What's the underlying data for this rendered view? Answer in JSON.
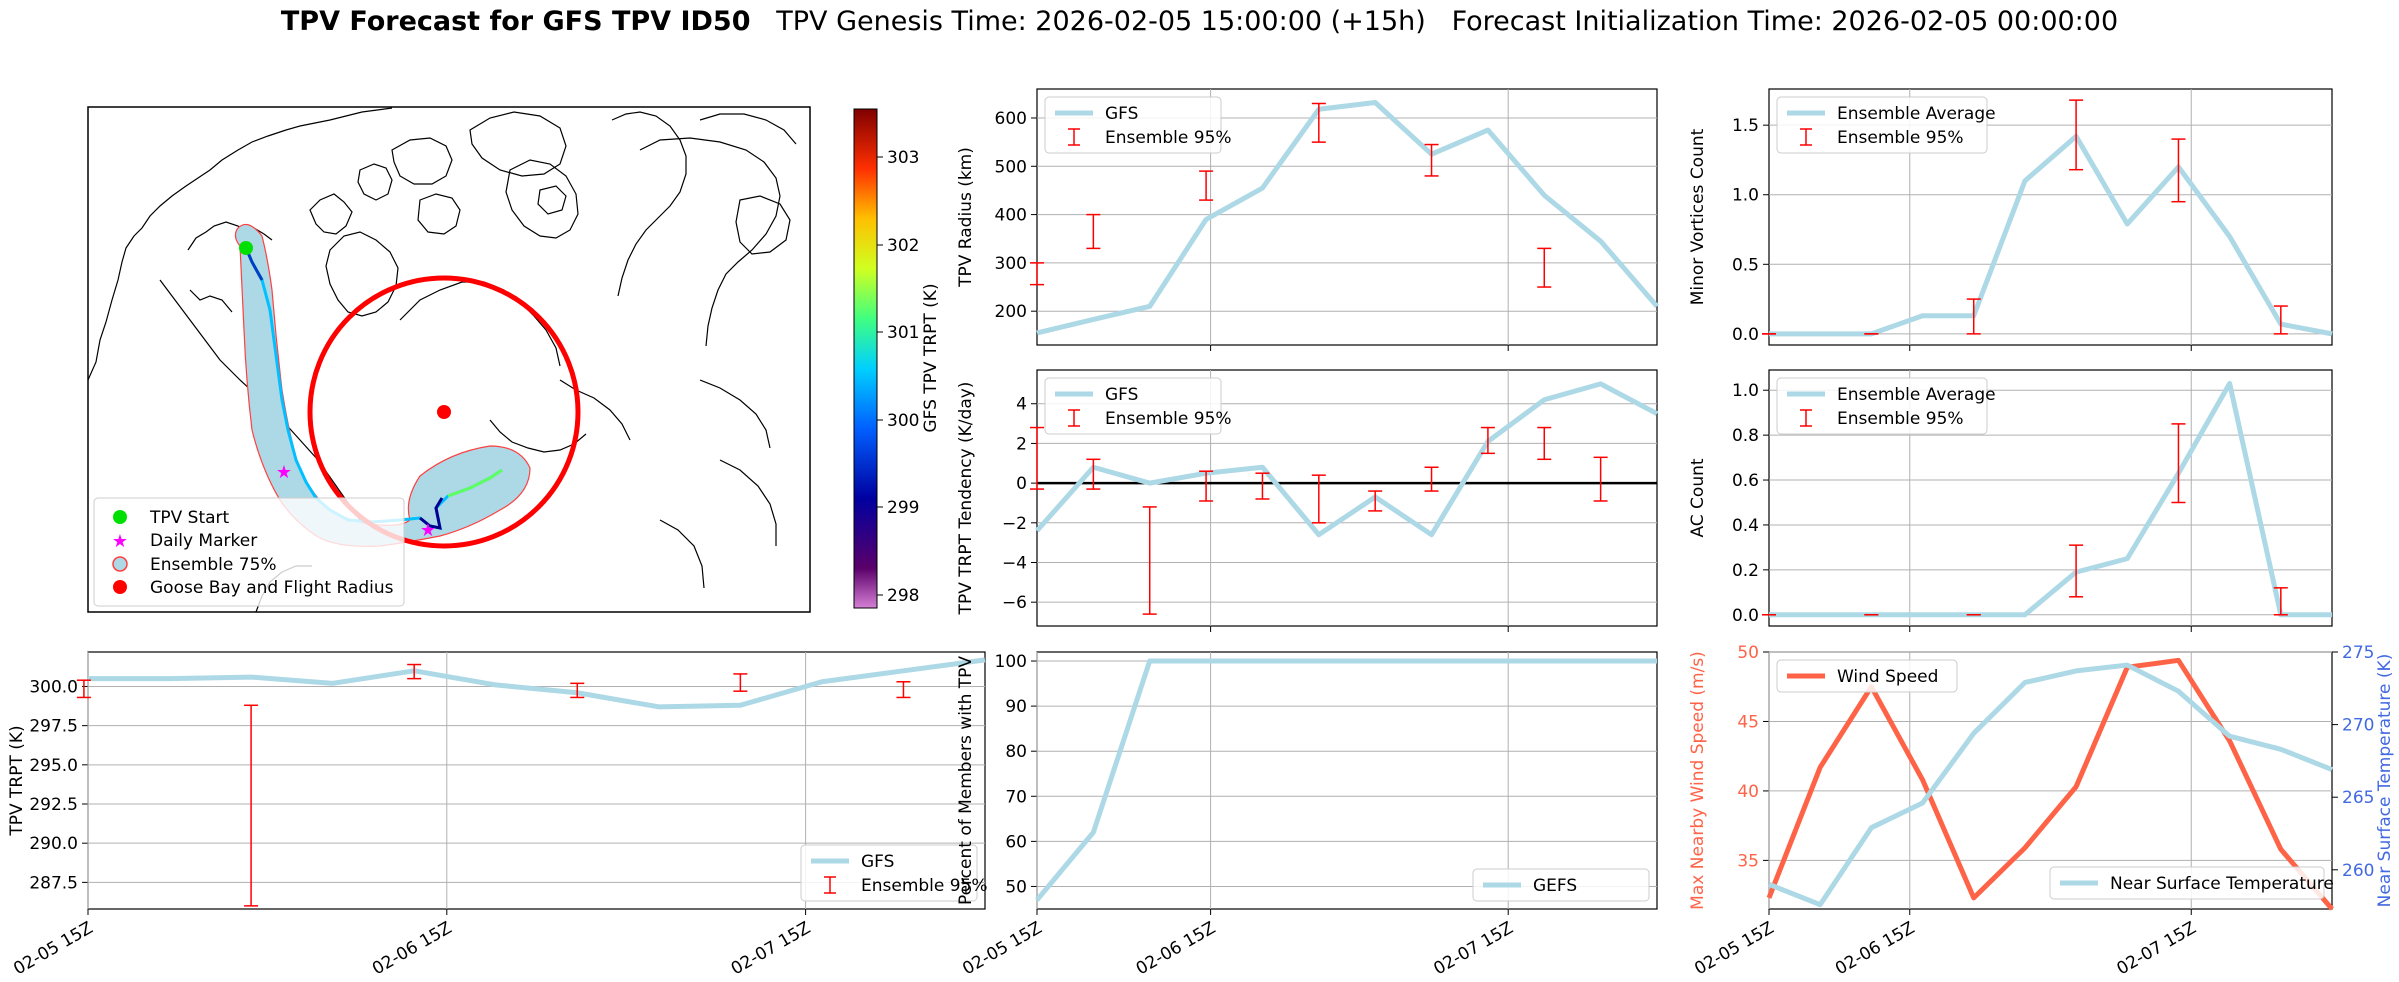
{
  "title": {
    "bold": "TPV Forecast for GFS TPV ID50",
    "genesis": "TPV Genesis Time: 2026-02-05 15:00:00 (+15h)",
    "init": "Forecast Initialization Time: 2026-02-05 00:00:00"
  },
  "colors": {
    "gfs_line": "#add8e6",
    "errbar": "#ff0000",
    "wind": "#ff6347",
    "temp_axis": "#4169e1",
    "grid": "#b0b0b0"
  },
  "time_ticks": [
    "02-05 15Z",
    "02-06 15Z",
    "02-07 15Z"
  ],
  "map": {
    "colorbar": {
      "label": "GFS TPV TRPT (K)",
      "ticks": [
        "303",
        "302",
        "301",
        "300",
        "299",
        "298"
      ]
    },
    "legend": [
      "TPV Start",
      "Daily Marker",
      "Ensemble 75%",
      "Goose Bay and Flight Radius"
    ]
  },
  "chart_data": [
    {
      "id": "trpt",
      "type": "line",
      "ylabel": "TPV TRPT (K)",
      "ylim": [
        285.8,
        302.2
      ],
      "yticks": [
        "300.0",
        "297.5",
        "295.0",
        "292.5",
        "290.0",
        "287.5"
      ],
      "legend": [
        "GFS",
        "Ensemble 95%"
      ],
      "legend_loc": "lower right",
      "x": [
        0,
        1,
        2,
        3,
        4,
        5,
        6,
        7,
        8,
        9,
        10,
        11
      ],
      "series": [
        {
          "name": "GFS",
          "values": [
            300.5,
            300.5,
            300.6,
            300.2,
            301.0,
            300.1,
            299.6,
            298.7,
            298.8,
            300.3,
            301.0,
            301.7
          ]
        }
      ],
      "errorbars": [
        {
          "x": -0.05,
          "low": 299.3,
          "high": 300.4
        },
        {
          "x": 2.0,
          "low": 286.0,
          "high": 298.8
        },
        {
          "x": 4.0,
          "low": 300.5,
          "high": 301.4
        },
        {
          "x": 6.0,
          "low": 299.3,
          "high": 300.2
        },
        {
          "x": 8.0,
          "low": 299.7,
          "high": 300.8
        },
        {
          "x": 10.0,
          "low": 299.3,
          "high": 300.3
        }
      ]
    },
    {
      "id": "radius",
      "type": "line",
      "ylabel": "TPV Radius (km)",
      "ylim": [
        130,
        660
      ],
      "yticks": [
        "600",
        "500",
        "400",
        "300",
        "200"
      ],
      "legend": [
        "GFS",
        "Ensemble 95%"
      ],
      "legend_loc": "upper left",
      "x": [
        0,
        1,
        2,
        3,
        4,
        5,
        6,
        7,
        8,
        9,
        10,
        11
      ],
      "series": [
        {
          "name": "GFS",
          "values": [
            155,
            183,
            210,
            390,
            455,
            618,
            632,
            525,
            575,
            440,
            345,
            210
          ]
        }
      ],
      "errorbars": [
        {
          "x": 0.0,
          "low": 255,
          "high": 300
        },
        {
          "x": 1.0,
          "low": 330,
          "high": 400
        },
        {
          "x": 3.0,
          "low": 430,
          "high": 490
        },
        {
          "x": 5.0,
          "low": 550,
          "high": 630
        },
        {
          "x": 7.0,
          "low": 480,
          "high": 545
        },
        {
          "x": 9.0,
          "low": 250,
          "high": 330
        }
      ]
    },
    {
      "id": "tendency",
      "type": "line",
      "ylabel": "TPV TRPT Tendency (K/day)",
      "ylim": [
        -7.2,
        5.7
      ],
      "yticks": [
        "4",
        "2",
        "0",
        "−2",
        "−4",
        "−6"
      ],
      "zero_line": true,
      "legend": [
        "GFS",
        "Ensemble 95%"
      ],
      "legend_loc": "upper left",
      "x": [
        0,
        1,
        2,
        3,
        4,
        5,
        6,
        7,
        8,
        9,
        10,
        11
      ],
      "series": [
        {
          "name": "GFS",
          "values": [
            -2.4,
            0.8,
            0.0,
            0.5,
            0.8,
            -2.6,
            -0.7,
            -2.6,
            2.1,
            4.2,
            5.0,
            3.5
          ]
        }
      ],
      "errorbars": [
        {
          "x": 0.0,
          "low": -0.3,
          "high": 2.8
        },
        {
          "x": 1.0,
          "low": -0.3,
          "high": 1.2
        },
        {
          "x": 2.0,
          "low": -6.6,
          "high": -1.2
        },
        {
          "x": 3.0,
          "low": -0.9,
          "high": 0.6
        },
        {
          "x": 4.0,
          "low": -0.8,
          "high": 0.5
        },
        {
          "x": 5.0,
          "low": -2.0,
          "high": 0.4
        },
        {
          "x": 6.0,
          "low": -1.4,
          "high": -0.4
        },
        {
          "x": 7.0,
          "low": -0.4,
          "high": 0.8
        },
        {
          "x": 8.0,
          "low": 1.5,
          "high": 2.8
        },
        {
          "x": 9.0,
          "low": 1.2,
          "high": 2.8
        },
        {
          "x": 10.0,
          "low": -0.9,
          "high": 1.3
        }
      ]
    },
    {
      "id": "members",
      "type": "line",
      "ylabel": "Percent of Members with TPV",
      "ylim": [
        45,
        102
      ],
      "yticks": [
        "100",
        "90",
        "80",
        "70",
        "60",
        "50"
      ],
      "legend": [
        "GEFS"
      ],
      "legend_loc": "lower right",
      "x": [
        0,
        1,
        2,
        3,
        4,
        5,
        6,
        7,
        8,
        9,
        10,
        11
      ],
      "series": [
        {
          "name": "GEFS",
          "values": [
            47,
            62,
            100,
            100,
            100,
            100,
            100,
            100,
            100,
            100,
            100,
            100
          ]
        }
      ],
      "errorbars": []
    },
    {
      "id": "minor",
      "type": "line",
      "ylabel": "Minor Vortices Count",
      "ylim": [
        -0.08,
        1.76
      ],
      "yticks": [
        "1.5",
        "1.0",
        "0.5",
        "0.0"
      ],
      "legend": [
        "Ensemble Average",
        "Ensemble 95%"
      ],
      "legend_loc": "upper left",
      "x": [
        0,
        1,
        2,
        3,
        4,
        5,
        6,
        7,
        8,
        9,
        10,
        11
      ],
      "series": [
        {
          "name": "Ensemble Average",
          "values": [
            0.0,
            0.0,
            0.0,
            0.13,
            0.13,
            1.1,
            1.42,
            0.79,
            1.2,
            0.7,
            0.07,
            0.0
          ]
        }
      ],
      "errorbars": [
        {
          "x": 0.0,
          "low": 0.0,
          "high": 0.0
        },
        {
          "x": 2.0,
          "low": 0.0,
          "high": 0.0
        },
        {
          "x": 4.0,
          "low": 0.0,
          "high": 0.25
        },
        {
          "x": 6.0,
          "low": 1.18,
          "high": 1.68
        },
        {
          "x": 8.0,
          "low": 0.95,
          "high": 1.4
        },
        {
          "x": 10.0,
          "low": 0.0,
          "high": 0.2
        }
      ]
    },
    {
      "id": "ac",
      "type": "line",
      "ylabel": "AC Count",
      "ylim": [
        -0.05,
        1.09
      ],
      "yticks": [
        "1.0",
        "0.8",
        "0.6",
        "0.4",
        "0.2",
        "0.0"
      ],
      "legend": [
        "Ensemble Average",
        "Ensemble 95%"
      ],
      "legend_loc": "upper left",
      "x": [
        0,
        1,
        2,
        3,
        4,
        5,
        6,
        7,
        8,
        9,
        10,
        11
      ],
      "series": [
        {
          "name": "Ensemble Average",
          "values": [
            0.0,
            0.0,
            0.0,
            0.0,
            0.0,
            0.0,
            0.19,
            0.25,
            0.63,
            1.03,
            0.0,
            0.0
          ]
        }
      ],
      "errorbars": [
        {
          "x": 0.0,
          "low": 0.0,
          "high": 0.0
        },
        {
          "x": 2.0,
          "low": 0.0,
          "high": 0.0
        },
        {
          "x": 4.0,
          "low": 0.0,
          "high": 0.0
        },
        {
          "x": 6.0,
          "low": 0.08,
          "high": 0.31
        },
        {
          "x": 8.0,
          "low": 0.5,
          "high": 0.85
        },
        {
          "x": 10.0,
          "low": 0.0,
          "high": 0.12
        }
      ]
    },
    {
      "id": "wind",
      "type": "line",
      "ylabel": "Max Nearby Wind Speed (m/s)",
      "ylabel_right": "Near Surface Temperature (K)",
      "ylim": [
        31.5,
        50
      ],
      "ylim_right": [
        257.3,
        275
      ],
      "yticks": [
        "50",
        "45",
        "40",
        "35"
      ],
      "yticks_right": [
        "275",
        "270",
        "265",
        "260"
      ],
      "legend_left": "Wind Speed",
      "legend_right": "Near Surface Temperature",
      "x": [
        0,
        1,
        2,
        3,
        4,
        5,
        6,
        7,
        8,
        9,
        10,
        11
      ],
      "series": [
        {
          "name": "Wind Speed",
          "values": [
            32.3,
            41.7,
            47.5,
            40.8,
            32.3,
            35.9,
            40.3,
            48.9,
            49.4,
            43.6,
            35.8,
            31.5
          ]
        },
        {
          "name": "Near Surface Temperature",
          "values": [
            259.0,
            257.6,
            262.9,
            264.6,
            269.4,
            272.9,
            273.7,
            274.1,
            272.3,
            269.2,
            268.3,
            266.9
          ]
        }
      ]
    }
  ]
}
